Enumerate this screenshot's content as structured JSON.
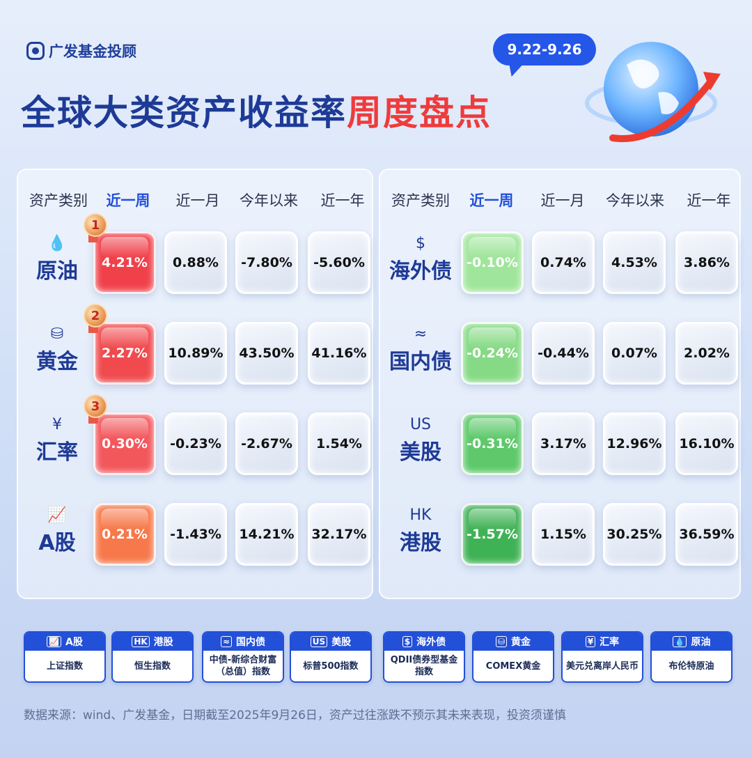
{
  "brand": {
    "logo_text": "广发基金投顾"
  },
  "title": {
    "part1": "全球大类资产收益率",
    "part2": "周度盘点"
  },
  "date_range": "9.22-9.26",
  "headers": [
    "资产类别",
    "近一周",
    "近一月",
    "今年以来",
    "近一年"
  ],
  "left_rows": [
    {
      "name": "原油",
      "icon": "droplet-icon",
      "glyph": "💧",
      "rank": "1",
      "values": [
        "4.21%",
        "0.88%",
        "-7.80%",
        "-5.60%"
      ],
      "color": "#f0414b"
    },
    {
      "name": "黄金",
      "icon": "gold-bar-icon",
      "glyph": "⛁",
      "rank": "2",
      "values": [
        "2.27%",
        "10.89%",
        "43.50%",
        "41.16%"
      ],
      "color": "#f04a4e"
    },
    {
      "name": "汇率",
      "icon": "yen-icon",
      "glyph": "¥",
      "rank": "3",
      "values": [
        "0.30%",
        "-0.23%",
        "-2.67%",
        "1.54%"
      ],
      "color": "#f2575c"
    },
    {
      "name": "A股",
      "icon": "chart-up-icon",
      "glyph": "📈",
      "rank": "",
      "values": [
        "0.21%",
        "-1.43%",
        "14.21%",
        "32.17%"
      ],
      "color": "#f7784a"
    }
  ],
  "right_rows": [
    {
      "name": "海外债",
      "icon": "dollar-note-icon",
      "glyph": "$",
      "values": [
        "-0.10%",
        "0.74%",
        "4.53%",
        "3.86%"
      ],
      "color": "#9fe59a"
    },
    {
      "name": "国内债",
      "icon": "chart-card-icon",
      "glyph": "≈",
      "values": [
        "-0.24%",
        "-0.44%",
        "0.07%",
        "2.02%"
      ],
      "color": "#86da85"
    },
    {
      "name": "美股",
      "icon": "us-icon",
      "glyph": "US",
      "values": [
        "-0.31%",
        "3.17%",
        "12.96%",
        "16.10%"
      ],
      "color": "#5dc96a"
    },
    {
      "name": "港股",
      "icon": "hk-icon",
      "glyph": "HK",
      "values": [
        "-1.57%",
        "1.15%",
        "30.25%",
        "36.59%"
      ],
      "color": "#3fb255"
    }
  ],
  "legend": [
    {
      "tag": "A股",
      "mark": "📈",
      "icon": "chart-up-icon",
      "desc": "上证指数"
    },
    {
      "tag": "港股",
      "mark": "HK",
      "icon": "hk-icon",
      "desc": "恒生指数"
    },
    {
      "tag": "国内债",
      "mark": "≈",
      "icon": "chart-card-icon",
      "desc": "中债-新综合财富（总值）指数"
    },
    {
      "tag": "美股",
      "mark": "US",
      "icon": "us-icon",
      "desc": "标普500指数"
    },
    {
      "tag": "海外债",
      "mark": "$",
      "icon": "dollar-note-icon",
      "desc": "QDII债券型基金指数"
    },
    {
      "tag": "黄金",
      "mark": "⛁",
      "icon": "gold-bar-icon",
      "desc": "COMEX黄金"
    },
    {
      "tag": "汇率",
      "mark": "¥",
      "icon": "yen-icon",
      "desc": "美元兑离岸人民币"
    },
    {
      "tag": "原油",
      "mark": "💧",
      "icon": "droplet-icon",
      "desc": "布伦特原油"
    }
  ],
  "footer": "数据来源：wind、广发基金，日期截至2025年9月26日，资产过往涨跌不预示其未来表现，投资须谨慎"
}
